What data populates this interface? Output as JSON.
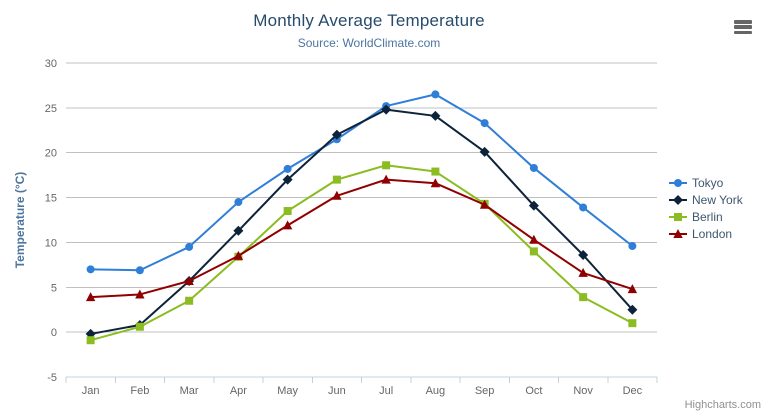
{
  "header": {
    "menu_icon": "hamburger-menu-icon"
  },
  "credits": {
    "text": "Highcharts.com"
  },
  "chart_data": {
    "type": "line",
    "title": "Monthly Average Temperature",
    "subtitle": "Source: WorldClimate.com",
    "categories": [
      "Jan",
      "Feb",
      "Mar",
      "Apr",
      "May",
      "Jun",
      "Jul",
      "Aug",
      "Sep",
      "Oct",
      "Nov",
      "Dec"
    ],
    "xlabel": "",
    "ylabel": "Temperature (°C)",
    "ylim": [
      -5,
      30
    ],
    "yticks": [
      30,
      25,
      20,
      15,
      10,
      5,
      0,
      -5
    ],
    "grid": true,
    "legend_position": "right",
    "series": [
      {
        "name": "Tokyo",
        "color": "#2f7ed8",
        "marker": "circle",
        "values": [
          7.0,
          6.9,
          9.5,
          14.5,
          18.2,
          21.5,
          25.2,
          26.5,
          23.3,
          18.3,
          13.9,
          9.6
        ]
      },
      {
        "name": "New York",
        "color": "#0d233a",
        "marker": "diamond",
        "values": [
          -0.2,
          0.8,
          5.7,
          11.3,
          17.0,
          22.0,
          24.8,
          24.1,
          20.1,
          14.1,
          8.6,
          2.5
        ]
      },
      {
        "name": "Berlin",
        "color": "#8bbc21",
        "marker": "square",
        "values": [
          -0.9,
          0.6,
          3.5,
          8.4,
          13.5,
          17.0,
          18.6,
          17.9,
          14.3,
          9.0,
          3.9,
          1.0
        ]
      },
      {
        "name": "London",
        "color": "#910000",
        "marker": "triangle",
        "values": [
          3.9,
          4.2,
          5.7,
          8.5,
          11.9,
          15.2,
          17.0,
          16.6,
          14.2,
          10.3,
          6.6,
          4.8
        ]
      }
    ],
    "colors": {
      "title": "#274b6d",
      "subtitle": "#4d759e",
      "axis_title": "#4d759e",
      "axis_labels": "#666666",
      "gridline": "#c0c0c0",
      "axis_line": "#c0d0e0",
      "legend_text": "#3e576f",
      "credits": "#909090"
    }
  }
}
